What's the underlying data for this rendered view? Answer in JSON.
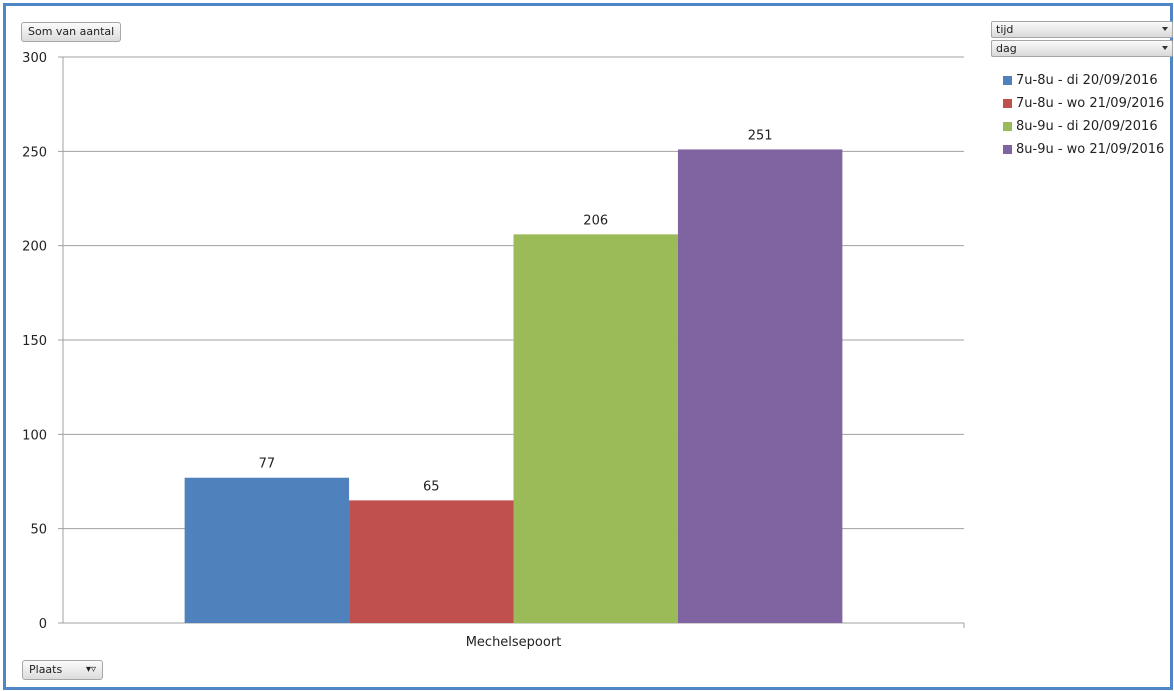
{
  "ui": {
    "value_field": "Som van aantal",
    "filters": [
      {
        "label": "tijd"
      },
      {
        "label": "dag"
      }
    ],
    "axis_field": "Plaats"
  },
  "chart_data": {
    "type": "bar",
    "categories": [
      "Mechelsepoort"
    ],
    "series": [
      {
        "name": "7u-8u - di 20/09/2016",
        "values": [
          77
        ],
        "color": "#4f81bd"
      },
      {
        "name": "7u-8u - wo 21/09/2016",
        "values": [
          65
        ],
        "color": "#c0504d"
      },
      {
        "name": "8u-9u - di 20/09/2016",
        "values": [
          206
        ],
        "color": "#9bbb59"
      },
      {
        "name": "8u-9u - wo 21/09/2016",
        "values": [
          251
        ],
        "color": "#8064a2"
      }
    ],
    "ylim": [
      0,
      300
    ],
    "yticks": [
      0,
      50,
      100,
      150,
      200,
      250,
      300
    ],
    "grid": true,
    "legend_position": "right",
    "data_labels": true
  }
}
